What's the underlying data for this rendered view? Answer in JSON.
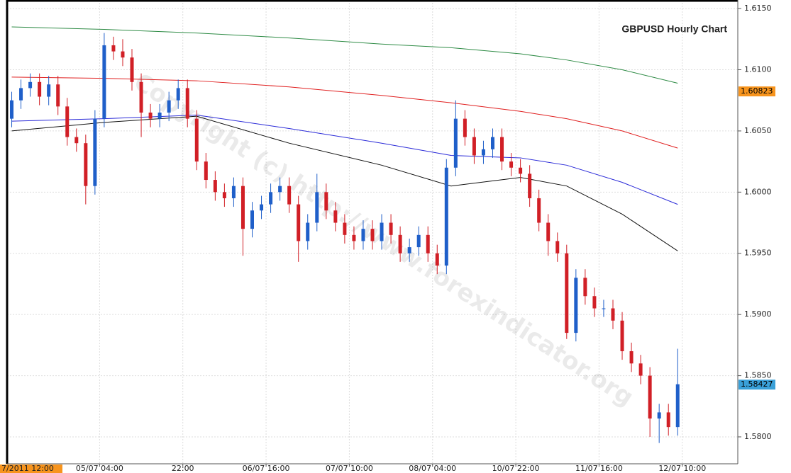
{
  "chart_data": {
    "type": "candlestick",
    "title": "GBPUSD Hourly Chart",
    "watermark": "Copyright (c) http://www.forexindicator.org",
    "cursor_label": "7/2011 12:00",
    "up_color": "#1f5fc9",
    "down_color": "#d11f26",
    "xlim": [
      -1,
      157
    ],
    "ylim": [
      1.5778,
      1.6157
    ],
    "yticks": [
      {
        "value": 1.615,
        "label": "1.6150"
      },
      {
        "value": 1.61,
        "label": "1.6100"
      },
      {
        "value": 1.605,
        "label": "1.6050"
      },
      {
        "value": 1.6,
        "label": "1.6000"
      },
      {
        "value": 1.595,
        "label": "1.5950"
      },
      {
        "value": 1.59,
        "label": "1.5900"
      },
      {
        "value": 1.585,
        "label": "1.5850"
      },
      {
        "value": 1.58,
        "label": "1.5800"
      }
    ],
    "xticks": [
      {
        "value": 19,
        "label": "05/07 04:00"
      },
      {
        "value": 37,
        "label": "22:00"
      },
      {
        "value": 55,
        "label": "06/07 16:00"
      },
      {
        "value": 73,
        "label": "07/07 10:00"
      },
      {
        "value": 91,
        "label": "08/07 04:00"
      },
      {
        "value": 109,
        "label": "10/07 22:00"
      },
      {
        "value": 127,
        "label": "11/07 16:00"
      },
      {
        "value": 145,
        "label": "12/07 10:00"
      }
    ],
    "grid": true,
    "x": [
      0,
      2,
      4,
      6,
      8,
      10,
      12,
      14,
      16,
      18,
      20,
      22,
      24,
      26,
      28,
      30,
      32,
      34,
      36,
      38,
      40,
      42,
      44,
      46,
      48,
      50,
      52,
      54,
      56,
      58,
      60,
      62,
      64,
      66,
      68,
      70,
      72,
      74,
      76,
      78,
      80,
      82,
      84,
      86,
      88,
      90,
      92,
      94,
      96,
      98,
      100,
      102,
      104,
      106,
      108,
      110,
      112,
      114,
      116,
      118,
      120,
      122,
      124,
      126,
      128,
      130,
      132,
      134,
      136,
      138,
      140,
      142,
      144
    ],
    "open": [
      1.606,
      1.6075,
      1.6085,
      1.609,
      1.6078,
      1.6088,
      1.607,
      1.6045,
      1.604,
      1.6005,
      1.606,
      1.612,
      1.6115,
      1.611,
      1.609,
      1.6065,
      1.606,
      1.6065,
      1.6075,
      1.6085,
      1.606,
      1.6025,
      1.601,
      1.6,
      1.5995,
      1.6005,
      1.597,
      1.5985,
      1.599,
      1.6,
      1.6005,
      1.599,
      1.596,
      1.5975,
      1.6,
      1.5985,
      1.5975,
      1.5965,
      1.596,
      1.597,
      1.596,
      1.5975,
      1.5965,
      1.595,
      1.5955,
      1.5965,
      1.595,
      1.594,
      1.602,
      1.606,
      1.6045,
      1.603,
      1.6035,
      1.6045,
      1.6025,
      1.602,
      1.6015,
      1.5995,
      1.5975,
      1.596,
      1.595,
      1.5885,
      1.593,
      1.5915,
      1.5905,
      1.5905,
      1.5895,
      1.587,
      1.586,
      1.585,
      1.5815,
      1.582,
      1.5808
    ],
    "high": [
      1.6082,
      1.6092,
      1.6097,
      1.6097,
      1.6095,
      1.6095,
      1.6077,
      1.6052,
      1.6047,
      1.6067,
      1.613,
      1.6127,
      1.6125,
      1.6117,
      1.6097,
      1.6072,
      1.6072,
      1.6082,
      1.6092,
      1.6092,
      1.6067,
      1.6032,
      1.6017,
      1.6007,
      1.6012,
      1.6012,
      1.5992,
      1.5997,
      1.6007,
      1.6012,
      1.6012,
      1.5997,
      1.5982,
      1.6015,
      1.6007,
      1.5992,
      1.5982,
      1.5972,
      1.5977,
      1.5977,
      1.5982,
      1.5982,
      1.5972,
      1.5962,
      1.5972,
      1.5972,
      1.5957,
      1.6027,
      1.6075,
      1.6067,
      1.6052,
      1.6042,
      1.6052,
      1.6052,
      1.6032,
      1.6027,
      1.6022,
      1.6002,
      1.5982,
      1.5967,
      1.5957,
      1.5937,
      1.5937,
      1.5922,
      1.5912,
      1.5912,
      1.5902,
      1.5877,
      1.5867,
      1.5857,
      1.5827,
      1.5827,
      1.5872
    ],
    "low": [
      1.6053,
      1.6068,
      1.6078,
      1.6071,
      1.6071,
      1.6063,
      1.6038,
      1.6033,
      1.599,
      1.5998,
      1.6053,
      1.6108,
      1.6103,
      1.6083,
      1.6045,
      1.6053,
      1.6053,
      1.6058,
      1.6068,
      1.6053,
      1.6018,
      1.6003,
      1.5993,
      1.5988,
      1.5988,
      1.5948,
      1.5963,
      1.5978,
      1.5983,
      1.5993,
      1.5983,
      1.5943,
      1.5953,
      1.5968,
      1.5978,
      1.5968,
      1.5958,
      1.5953,
      1.5953,
      1.5953,
      1.5953,
      1.5958,
      1.5943,
      1.5943,
      1.5948,
      1.5943,
      1.5933,
      1.5933,
      1.6013,
      1.6038,
      1.6023,
      1.6023,
      1.6028,
      1.6018,
      1.6013,
      1.6008,
      1.5988,
      1.5968,
      1.5948,
      1.5943,
      1.588,
      1.5878,
      1.5908,
      1.5898,
      1.5898,
      1.5888,
      1.5863,
      1.5853,
      1.5843,
      1.58,
      1.5795,
      1.5801,
      1.5801
    ],
    "close": [
      1.6075,
      1.6085,
      1.609,
      1.6078,
      1.6088,
      1.607,
      1.6045,
      1.604,
      1.6005,
      1.606,
      1.612,
      1.6115,
      1.611,
      1.609,
      1.6065,
      1.606,
      1.6065,
      1.6075,
      1.6085,
      1.606,
      1.6025,
      1.601,
      1.6,
      1.5995,
      1.6005,
      1.597,
      1.5985,
      1.599,
      1.6,
      1.6005,
      1.599,
      1.596,
      1.5975,
      1.6,
      1.5985,
      1.5975,
      1.5965,
      1.596,
      1.597,
      1.596,
      1.5975,
      1.5965,
      1.595,
      1.5955,
      1.5965,
      1.595,
      1.594,
      1.602,
      1.606,
      1.6045,
      1.603,
      1.6035,
      1.6045,
      1.6025,
      1.602,
      1.6015,
      1.5995,
      1.5975,
      1.596,
      1.595,
      1.5885,
      1.593,
      1.5915,
      1.5905,
      1.5905,
      1.5895,
      1.587,
      1.586,
      1.585,
      1.5815,
      1.582,
      1.5808,
      1.5843
    ],
    "lines": [
      {
        "color": "#2e8b45",
        "x": [
          0,
          20,
          40,
          60,
          80,
          95,
          110,
          120,
          132,
          144
        ],
        "values": [
          1.6135,
          1.6133,
          1.613,
          1.6126,
          1.6121,
          1.6118,
          1.6113,
          1.6108,
          1.61,
          1.6089
        ]
      },
      {
        "color": "#e02020",
        "x": [
          0,
          20,
          40,
          60,
          80,
          95,
          110,
          120,
          132,
          144
        ],
        "values": [
          1.6094,
          1.6093,
          1.6091,
          1.6086,
          1.6079,
          1.6073,
          1.6066,
          1.606,
          1.605,
          1.6036
        ]
      },
      {
        "color": "#2a2ad8",
        "x": [
          0,
          20,
          40,
          60,
          80,
          95,
          110,
          120,
          132,
          144
        ],
        "values": [
          1.6058,
          1.606,
          1.6063,
          1.6052,
          1.604,
          1.603,
          1.6028,
          1.6022,
          1.6008,
          1.599
        ]
      },
      {
        "color": "#111111",
        "x": [
          0,
          20,
          40,
          60,
          80,
          95,
          110,
          120,
          132,
          144
        ],
        "values": [
          1.605,
          1.6057,
          1.6062,
          1.604,
          1.6022,
          1.6005,
          1.6012,
          1.6005,
          1.5982,
          1.5952
        ]
      }
    ],
    "price_markers": [
      {
        "value": 1.60823,
        "color": "#f7941d"
      },
      {
        "value": 1.58427,
        "color": "#3aa0d8"
      }
    ]
  }
}
